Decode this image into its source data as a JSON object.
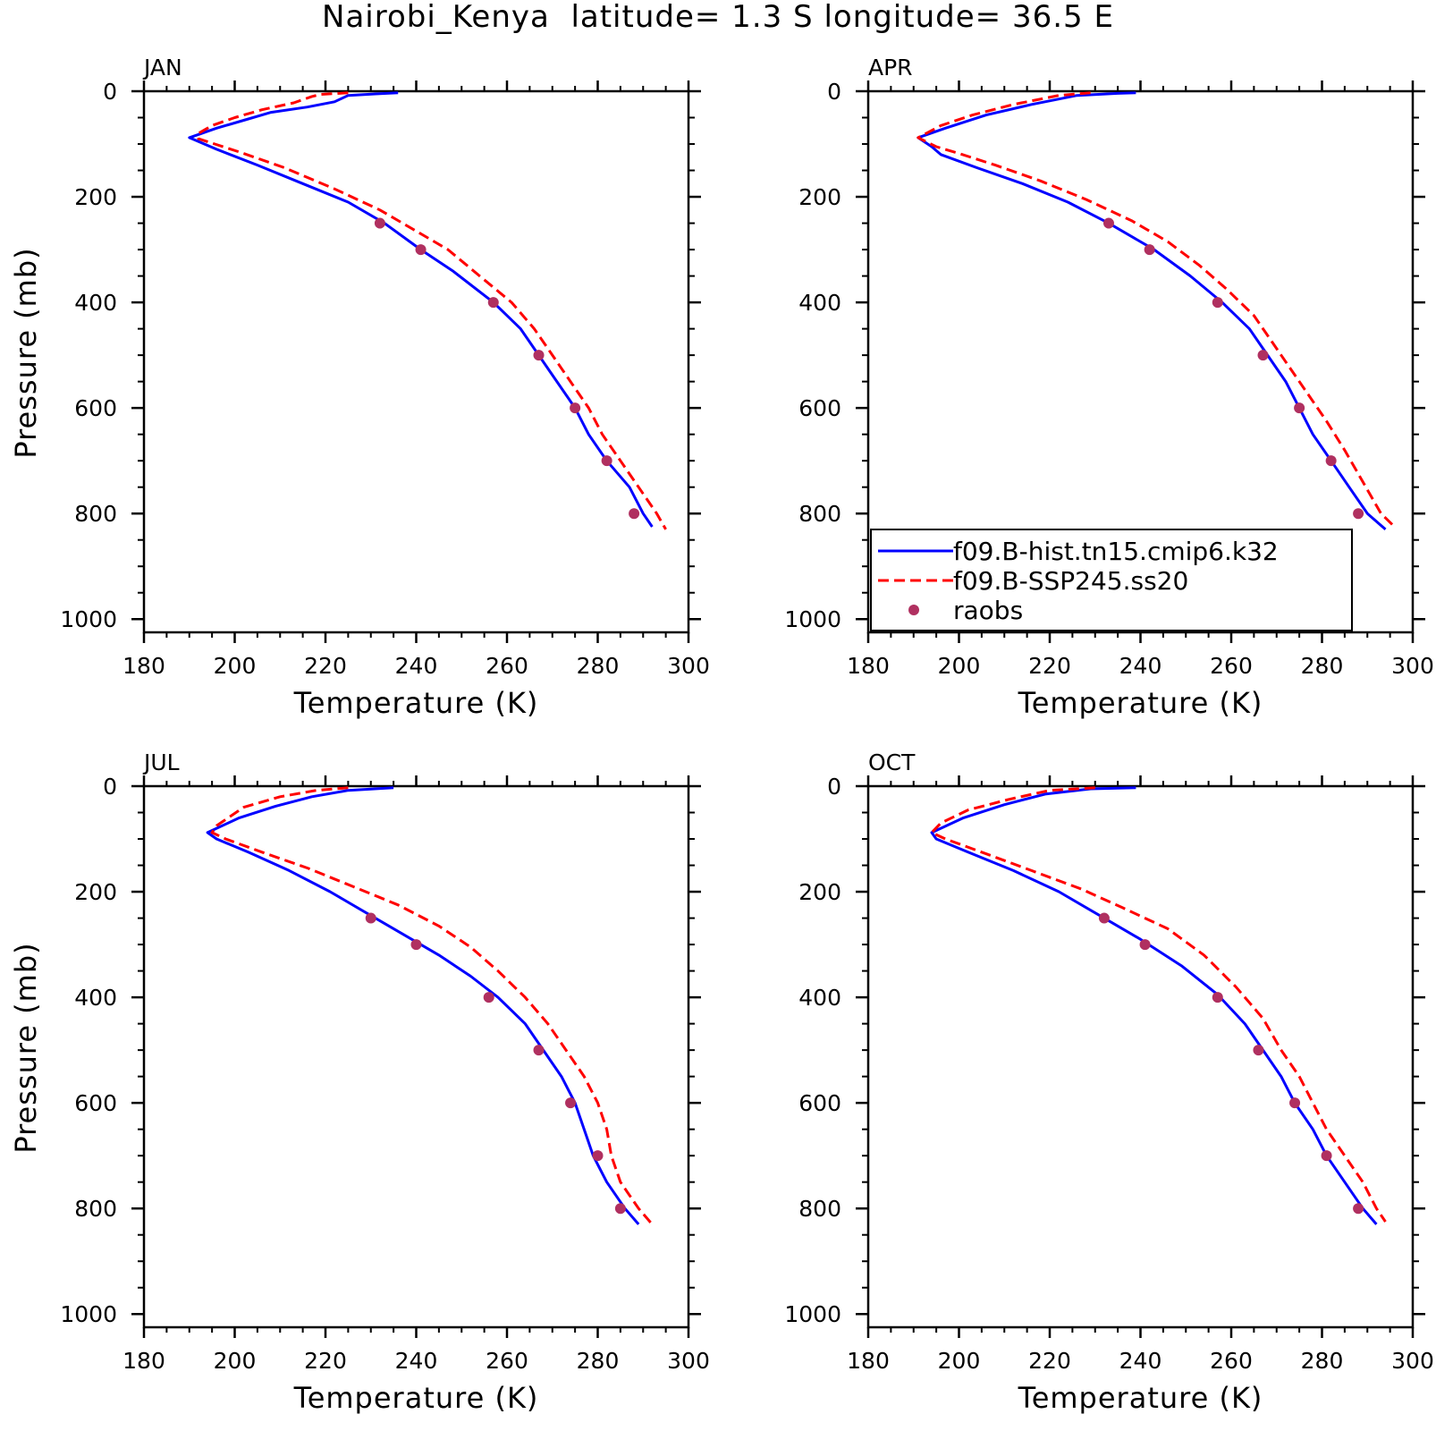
{
  "figure": {
    "title": "Nairobi_Kenya  latitude= 1.3 S longitude= 36.5 E"
  },
  "legend": {
    "entries": [
      {
        "label": "f09.B-hist.tn15.cmip6.k32",
        "style": "solid",
        "color": "#0000ff"
      },
      {
        "label": "f09.B-SSP245.ss20",
        "style": "dashed",
        "color": "#ff0000"
      },
      {
        "label": "raobs",
        "style": "dot",
        "color": "#b03060"
      }
    ]
  },
  "chart_data": [
    {
      "type": "line",
      "title": "JAN",
      "xlabel": "Temperature (K)",
      "ylabel": "Pressure (mb)",
      "xlim": [
        180,
        300
      ],
      "ylim": [
        1025,
        0
      ],
      "y_reversed": true,
      "xticks": [
        "180",
        "200",
        "220",
        "240",
        "260",
        "280",
        "300"
      ],
      "yticks": [
        "0",
        "200",
        "400",
        "600",
        "800",
        "1000"
      ],
      "show_ylabel": true,
      "show_legend": false,
      "series": [
        {
          "name": "f09.B-hist.tn15.cmip6.k32",
          "color": "#0000ff",
          "style": "solid",
          "points": [
            [
              236,
              3
            ],
            [
              231,
              5
            ],
            [
              225,
              8
            ],
            [
              222,
              20
            ],
            [
              216,
              30
            ],
            [
              208,
              40
            ],
            [
              202,
              55
            ],
            [
              196,
              70
            ],
            [
              190,
              88
            ],
            [
              196,
              110
            ],
            [
              205,
              140
            ],
            [
              215,
              175
            ],
            [
              225,
              210
            ],
            [
              233,
              250
            ],
            [
              241,
              300
            ],
            [
              248,
              340
            ],
            [
              257,
              400
            ],
            [
              263,
              450
            ],
            [
              267,
              500
            ],
            [
              271,
              550
            ],
            [
              275,
              600
            ],
            [
              278,
              650
            ],
            [
              282,
              700
            ],
            [
              287,
              750
            ],
            [
              290,
              800
            ],
            [
              292,
              825
            ]
          ]
        },
        {
          "name": "f09.B-SSP245.ss20",
          "color": "#ff0000",
          "style": "dashed",
          "points": [
            [
              225,
              3
            ],
            [
              219,
              6
            ],
            [
              217,
              10
            ],
            [
              213,
              22
            ],
            [
              206,
              35
            ],
            [
              200,
              50
            ],
            [
              195,
              65
            ],
            [
              192,
              80
            ],
            [
              192,
              90
            ],
            [
              201,
              115
            ],
            [
              211,
              145
            ],
            [
              222,
              185
            ],
            [
              232,
              225
            ],
            [
              240,
              265
            ],
            [
              247,
              300
            ],
            [
              254,
              350
            ],
            [
              261,
              400
            ],
            [
              266,
              450
            ],
            [
              270,
              500
            ],
            [
              274,
              550
            ],
            [
              278,
              600
            ],
            [
              281,
              650
            ],
            [
              285,
              700
            ],
            [
              289,
              750
            ],
            [
              293,
              800
            ],
            [
              295,
              830
            ]
          ]
        },
        {
          "name": "raobs",
          "color": "#b03060",
          "style": "dot",
          "points": [
            [
              232,
              250
            ],
            [
              241,
              300
            ],
            [
              257,
              400
            ],
            [
              267,
              500
            ],
            [
              275,
              600
            ],
            [
              282,
              700
            ],
            [
              288,
              800
            ]
          ]
        }
      ]
    },
    {
      "type": "line",
      "title": "APR",
      "xlabel": "Temperature (K)",
      "ylabel": "Pressure (mb)",
      "xlim": [
        180,
        300
      ],
      "ylim": [
        1025,
        0
      ],
      "y_reversed": true,
      "xticks": [
        "180",
        "200",
        "220",
        "240",
        "260",
        "280",
        "300"
      ],
      "yticks": [
        "0",
        "200",
        "400",
        "600",
        "800",
        "1000"
      ],
      "show_ylabel": false,
      "show_legend": true,
      "series": [
        {
          "name": "f09.B-hist.tn15.cmip6.k32",
          "color": "#0000ff",
          "style": "solid",
          "points": [
            [
              239,
              3
            ],
            [
              235,
              4
            ],
            [
              226,
              8
            ],
            [
              216,
              25
            ],
            [
              206,
              45
            ],
            [
              197,
              70
            ],
            [
              191,
              88
            ],
            [
              194,
              105
            ],
            [
              196,
              120
            ],
            [
              204,
              145
            ],
            [
              214,
              175
            ],
            [
              224,
              210
            ],
            [
              233,
              250
            ],
            [
              243,
              300
            ],
            [
              251,
              350
            ],
            [
              258,
              400
            ],
            [
              264,
              450
            ],
            [
              268,
              500
            ],
            [
              272,
              550
            ],
            [
              275,
              600
            ],
            [
              278,
              650
            ],
            [
              282,
              700
            ],
            [
              286,
              750
            ],
            [
              290,
              800
            ],
            [
              294,
              830
            ]
          ]
        },
        {
          "name": "f09.B-SSP245.ss20",
          "color": "#ff0000",
          "style": "dashed",
          "points": [
            [
              229,
              3
            ],
            [
              222,
              8
            ],
            [
              212,
              25
            ],
            [
              203,
              45
            ],
            [
              196,
              65
            ],
            [
              191,
              88
            ],
            [
              195,
              105
            ],
            [
              200,
              118
            ],
            [
              208,
              140
            ],
            [
              218,
              170
            ],
            [
              228,
              205
            ],
            [
              238,
              245
            ],
            [
              246,
              285
            ],
            [
              253,
              330
            ],
            [
              259,
              375
            ],
            [
              265,
              425
            ],
            [
              269,
              475
            ],
            [
              273,
              525
            ],
            [
              277,
              575
            ],
            [
              281,
              625
            ],
            [
              285,
              680
            ],
            [
              289,
              740
            ],
            [
              293,
              800
            ],
            [
              296,
              825
            ]
          ]
        },
        {
          "name": "raobs",
          "color": "#b03060",
          "style": "dot",
          "points": [
            [
              233,
              250
            ],
            [
              242,
              300
            ],
            [
              257,
              400
            ],
            [
              267,
              500
            ],
            [
              275,
              600
            ],
            [
              282,
              700
            ],
            [
              288,
              800
            ]
          ]
        }
      ]
    },
    {
      "type": "line",
      "title": "JUL",
      "xlabel": "Temperature (K)",
      "ylabel": "Pressure (mb)",
      "xlim": [
        180,
        300
      ],
      "ylim": [
        1025,
        0
      ],
      "y_reversed": true,
      "xticks": [
        "180",
        "200",
        "220",
        "240",
        "260",
        "280",
        "300"
      ],
      "yticks": [
        "0",
        "200",
        "400",
        "600",
        "800",
        "1000"
      ],
      "show_ylabel": true,
      "show_legend": false,
      "series": [
        {
          "name": "f09.B-hist.tn15.cmip6.k32",
          "color": "#0000ff",
          "style": "solid",
          "points": [
            [
              235,
              3
            ],
            [
              225,
              8
            ],
            [
              217,
              20
            ],
            [
              209,
              38
            ],
            [
              201,
              60
            ],
            [
              194,
              88
            ],
            [
              196,
              100
            ],
            [
              203,
              125
            ],
            [
              212,
              160
            ],
            [
              221,
              200
            ],
            [
              229,
              240
            ],
            [
              237,
              280
            ],
            [
              245,
              320
            ],
            [
              252,
              360
            ],
            [
              258,
              400
            ],
            [
              264,
              450
            ],
            [
              268,
              500
            ],
            [
              272,
              550
            ],
            [
              275,
              600
            ],
            [
              277,
              650
            ],
            [
              279,
              700
            ],
            [
              282,
              750
            ],
            [
              286,
              800
            ],
            [
              289,
              830
            ]
          ]
        },
        {
          "name": "f09.B-SSP245.ss20",
          "color": "#ff0000",
          "style": "dashed",
          "points": [
            [
              225,
              3
            ],
            [
              218,
              8
            ],
            [
              210,
              20
            ],
            [
              202,
              40
            ],
            [
              196,
              75
            ],
            [
              195,
              88
            ],
            [
              198,
              100
            ],
            [
              206,
              125
            ],
            [
              216,
              155
            ],
            [
              226,
              190
            ],
            [
              236,
              225
            ],
            [
              245,
              265
            ],
            [
              252,
              305
            ],
            [
              258,
              350
            ],
            [
              264,
              400
            ],
            [
              269,
              450
            ],
            [
              273,
              500
            ],
            [
              277,
              550
            ],
            [
              280,
              600
            ],
            [
              282,
              650
            ],
            [
              283,
              700
            ],
            [
              285,
              750
            ],
            [
              289,
              800
            ],
            [
              292,
              830
            ]
          ]
        },
        {
          "name": "raobs",
          "color": "#b03060",
          "style": "dot",
          "points": [
            [
              230,
              250
            ],
            [
              240,
              300
            ],
            [
              256,
              400
            ],
            [
              267,
              500
            ],
            [
              274,
              600
            ],
            [
              280,
              700
            ],
            [
              285,
              800
            ]
          ]
        }
      ]
    },
    {
      "type": "line",
      "title": "OCT",
      "xlabel": "Temperature (K)",
      "ylabel": "Pressure (mb)",
      "xlim": [
        180,
        300
      ],
      "ylim": [
        1025,
        0
      ],
      "y_reversed": true,
      "xticks": [
        "180",
        "200",
        "220",
        "240",
        "260",
        "280",
        "300"
      ],
      "yticks": [
        "0",
        "200",
        "400",
        "600",
        "800",
        "1000"
      ],
      "show_ylabel": false,
      "show_legend": false,
      "series": [
        {
          "name": "f09.B-hist.tn15.cmip6.k32",
          "color": "#0000ff",
          "style": "solid",
          "points": [
            [
              239,
              3
            ],
            [
              229,
              5
            ],
            [
              219,
              15
            ],
            [
              210,
              35
            ],
            [
              201,
              60
            ],
            [
              194,
              88
            ],
            [
              195,
              100
            ],
            [
              202,
              125
            ],
            [
              212,
              160
            ],
            [
              222,
              200
            ],
            [
              231,
              245
            ],
            [
              240,
              290
            ],
            [
              249,
              340
            ],
            [
              257,
              395
            ],
            [
              263,
              450
            ],
            [
              267,
              500
            ],
            [
              271,
              550
            ],
            [
              274,
              600
            ],
            [
              278,
              650
            ],
            [
              281,
              700
            ],
            [
              285,
              750
            ],
            [
              289,
              800
            ],
            [
              292,
              830
            ]
          ]
        },
        {
          "name": "f09.B-SSP245.ss20",
          "color": "#ff0000",
          "style": "dashed",
          "points": [
            [
              230,
              3
            ],
            [
              220,
              8
            ],
            [
              211,
              25
            ],
            [
              202,
              45
            ],
            [
              196,
              70
            ],
            [
              194,
              88
            ],
            [
              197,
              100
            ],
            [
              205,
              125
            ],
            [
              216,
              160
            ],
            [
              227,
              195
            ],
            [
              236,
              230
            ],
            [
              246,
              270
            ],
            [
              254,
              320
            ],
            [
              261,
              380
            ],
            [
              267,
              440
            ],
            [
              271,
              500
            ],
            [
              275,
              550
            ],
            [
              278,
              600
            ],
            [
              281,
              650
            ],
            [
              285,
              700
            ],
            [
              289,
              750
            ],
            [
              292,
              800
            ],
            [
              294,
              825
            ]
          ]
        },
        {
          "name": "raobs",
          "color": "#b03060",
          "style": "dot",
          "points": [
            [
              232,
              250
            ],
            [
              241,
              300
            ],
            [
              257,
              400
            ],
            [
              266,
              500
            ],
            [
              274,
              600
            ],
            [
              281,
              700
            ],
            [
              288,
              800
            ]
          ]
        }
      ]
    }
  ]
}
